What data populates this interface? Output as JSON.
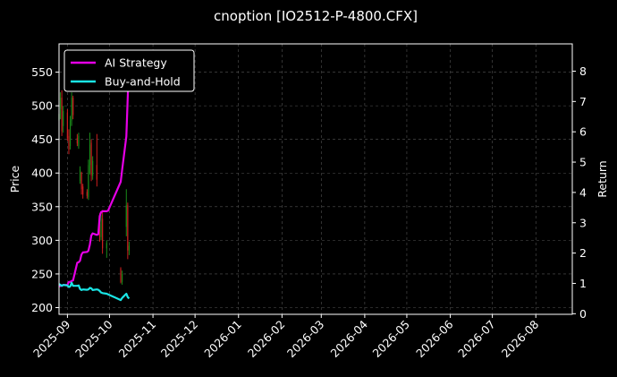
{
  "chart_data": {
    "type": "candlestick",
    "title": "cnoption [IO2512-P-4800.CFX]",
    "ylabel_left": "Price",
    "ylabel_right": "Return",
    "xlabel": "",
    "ylim_left": [
      190,
      592
    ],
    "ylim_right": [
      -0.02,
      8.9
    ],
    "xlim": [
      "2025-08-26",
      "2026-08-27"
    ],
    "grid": true,
    "legend_placement": "top-left",
    "y_ticks_left": [
      200,
      250,
      300,
      350,
      400,
      450,
      500,
      550
    ],
    "y_ticks_right": [
      0,
      1,
      2,
      3,
      4,
      5,
      6,
      7,
      8
    ],
    "x_ticks": [
      "2025-09",
      "2025-10",
      "2025-11",
      "2025-12",
      "2026-01",
      "2026-02",
      "2026-03",
      "2026-04",
      "2026-05",
      "2026-06",
      "2026-07",
      "2026-08"
    ],
    "x_tick_dates": [
      "2025-09-01",
      "2025-10-01",
      "2025-11-01",
      "2025-12-01",
      "2026-01-01",
      "2026-02-01",
      "2026-03-01",
      "2026-04-01",
      "2026-05-01",
      "2026-06-01",
      "2026-07-01",
      "2026-08-01"
    ],
    "candles": [
      {
        "date": "2025-08-26",
        "open": 478,
        "high": 492,
        "low": 470,
        "close": 488
      },
      {
        "date": "2025-08-27",
        "open": 495,
        "high": 520,
        "low": 480,
        "close": 512
      },
      {
        "date": "2025-08-28",
        "open": 512,
        "high": 523,
        "low": 455,
        "close": 462
      },
      {
        "date": "2025-08-29",
        "open": 470,
        "high": 500,
        "low": 460,
        "close": 492
      },
      {
        "date": "2025-09-01",
        "open": 490,
        "high": 495,
        "low": 448,
        "close": 452
      },
      {
        "date": "2025-09-02",
        "open": 455,
        "high": 465,
        "low": 428,
        "close": 435
      },
      {
        "date": "2025-09-03",
        "open": 440,
        "high": 485,
        "low": 435,
        "close": 478
      },
      {
        "date": "2025-09-04",
        "open": 478,
        "high": 520,
        "low": 470,
        "close": 512
      },
      {
        "date": "2025-09-05",
        "open": 512,
        "high": 515,
        "low": 480,
        "close": 486
      },
      {
        "date": "2025-09-08",
        "open": 452,
        "high": 458,
        "low": 440,
        "close": 444
      },
      {
        "date": "2025-09-09",
        "open": 440,
        "high": 460,
        "low": 436,
        "close": 455
      },
      {
        "date": "2025-09-10",
        "open": 388,
        "high": 410,
        "low": 384,
        "close": 405
      },
      {
        "date": "2025-09-11",
        "open": 400,
        "high": 402,
        "low": 368,
        "close": 376
      },
      {
        "date": "2025-09-12",
        "open": 380,
        "high": 384,
        "low": 362,
        "close": 368
      },
      {
        "date": "2025-09-15",
        "open": 372,
        "high": 376,
        "low": 362,
        "close": 366
      },
      {
        "date": "2025-09-16",
        "open": 364,
        "high": 420,
        "low": 360,
        "close": 412
      },
      {
        "date": "2025-09-17",
        "open": 412,
        "high": 460,
        "low": 398,
        "close": 442
      },
      {
        "date": "2025-09-18",
        "open": 445,
        "high": 450,
        "low": 388,
        "close": 396
      },
      {
        "date": "2025-09-19",
        "open": 396,
        "high": 425,
        "low": 390,
        "close": 418
      },
      {
        "date": "2025-09-22",
        "open": 412,
        "high": 458,
        "low": 380,
        "close": 390
      },
      {
        "date": "2025-09-24",
        "open": 325,
        "high": 340,
        "low": 298,
        "close": 305
      },
      {
        "date": "2025-09-25",
        "open": 305,
        "high": 338,
        "low": 300,
        "close": 332
      },
      {
        "date": "2025-09-26",
        "open": 332,
        "high": 345,
        "low": 280,
        "close": 288
      },
      {
        "date": "2025-09-29",
        "open": 288,
        "high": 300,
        "low": 274,
        "close": 296
      },
      {
        "date": "2025-10-09",
        "open": 258,
        "high": 260,
        "low": 236,
        "close": 238
      },
      {
        "date": "2025-10-10",
        "open": 238,
        "high": 255,
        "low": 234,
        "close": 250
      },
      {
        "date": "2025-10-13",
        "open": 320,
        "high": 376,
        "low": 306,
        "close": 352
      },
      {
        "date": "2025-10-14",
        "open": 352,
        "high": 356,
        "low": 272,
        "close": 285
      },
      {
        "date": "2025-10-15",
        "open": 285,
        "high": 298,
        "low": 278,
        "close": 292
      }
    ],
    "series": [
      {
        "name": "AI Strategy",
        "color": "#e600e6",
        "x": [
          "2025-08-26",
          "2025-08-27",
          "2025-08-28",
          "2025-08-29",
          "2025-09-01",
          "2025-09-02",
          "2025-09-03",
          "2025-09-04",
          "2025-09-05",
          "2025-09-08",
          "2025-09-09",
          "2025-09-10",
          "2025-09-11",
          "2025-09-12",
          "2025-09-15",
          "2025-09-16",
          "2025-09-17",
          "2025-09-18",
          "2025-09-19",
          "2025-09-22",
          "2025-09-23",
          "2025-09-24",
          "2025-09-25",
          "2025-09-26",
          "2025-09-29",
          "2025-09-30",
          "2025-10-09",
          "2025-10-10",
          "2025-10-13",
          "2025-10-14",
          "2025-10-15"
        ],
        "values": [
          0.9,
          0.92,
          0.92,
          0.95,
          0.95,
          1.05,
          1.05,
          1.08,
          1.1,
          1.68,
          1.7,
          1.75,
          1.95,
          2.02,
          2.04,
          2.08,
          2.28,
          2.58,
          2.65,
          2.6,
          2.62,
          3.22,
          3.35,
          3.38,
          3.38,
          3.4,
          4.35,
          4.75,
          5.85,
          7.1,
          8.45
        ]
      },
      {
        "name": "Buy-and-Hold",
        "color": "#1ae5e5",
        "x": [
          "2025-08-26",
          "2025-08-27",
          "2025-08-28",
          "2025-08-29",
          "2025-09-01",
          "2025-09-02",
          "2025-09-03",
          "2025-09-04",
          "2025-09-05",
          "2025-09-08",
          "2025-09-09",
          "2025-09-10",
          "2025-09-11",
          "2025-09-12",
          "2025-09-15",
          "2025-09-16",
          "2025-09-17",
          "2025-09-18",
          "2025-09-19",
          "2025-09-22",
          "2025-09-23",
          "2025-09-24",
          "2025-09-25",
          "2025-09-26",
          "2025-09-29",
          "2025-09-30",
          "2025-10-09",
          "2025-10-10",
          "2025-10-13",
          "2025-10-14",
          "2025-10-15"
        ],
        "values": [
          0.98,
          0.95,
          0.92,
          0.95,
          0.93,
          0.88,
          0.9,
          1.02,
          0.92,
          0.92,
          0.93,
          0.82,
          0.78,
          0.8,
          0.79,
          0.8,
          0.85,
          0.84,
          0.78,
          0.8,
          0.79,
          0.75,
          0.7,
          0.68,
          0.66,
          0.64,
          0.45,
          0.52,
          0.66,
          0.55,
          0.5
        ]
      }
    ],
    "candle_colors": {
      "up": "#1a8a1a",
      "down": "#cc1f1f"
    },
    "grid_color": "#555555"
  }
}
